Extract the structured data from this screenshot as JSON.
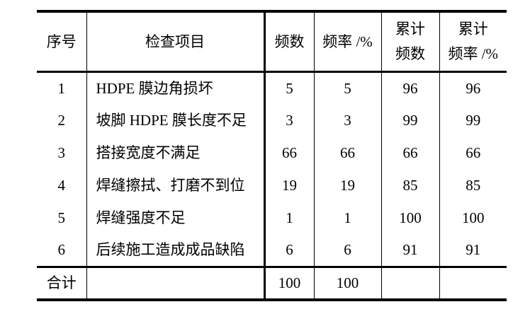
{
  "table": {
    "headers": {
      "serial": "序号",
      "item": "检查项目",
      "frequency": "频数",
      "rate": "频率 /%",
      "cum_frequency_line1": "累计",
      "cum_frequency_line2": "频数",
      "cum_rate_line1": "累计",
      "cum_rate_line2": "频率 /%"
    },
    "rows": [
      {
        "no": "1",
        "item": "HDPE 膜边角损坏",
        "freq": "5",
        "rate": "5",
        "cum_freq": "96",
        "cum_rate": "96"
      },
      {
        "no": "2",
        "item": "坡脚 HDPE 膜长度不足",
        "freq": "3",
        "rate": "3",
        "cum_freq": "99",
        "cum_rate": "99"
      },
      {
        "no": "3",
        "item": "搭接宽度不满足",
        "freq": "66",
        "rate": "66",
        "cum_freq": "66",
        "cum_rate": "66"
      },
      {
        "no": "4",
        "item": "焊缝擦拭、打磨不到位",
        "freq": "19",
        "rate": "19",
        "cum_freq": "85",
        "cum_rate": "85"
      },
      {
        "no": "5",
        "item": "焊缝强度不足",
        "freq": "1",
        "rate": "1",
        "cum_freq": "100",
        "cum_rate": "100"
      },
      {
        "no": "6",
        "item": "后续施工造成成品缺陷",
        "freq": "6",
        "rate": "6",
        "cum_freq": "91",
        "cum_rate": "91"
      }
    ],
    "total_row": {
      "label": "合计",
      "item": "",
      "freq": "100",
      "rate": "100",
      "cum_freq": "",
      "cum_rate": ""
    },
    "colors": {
      "line": "#000000",
      "background": "#ffffff",
      "text": "#000000"
    }
  }
}
